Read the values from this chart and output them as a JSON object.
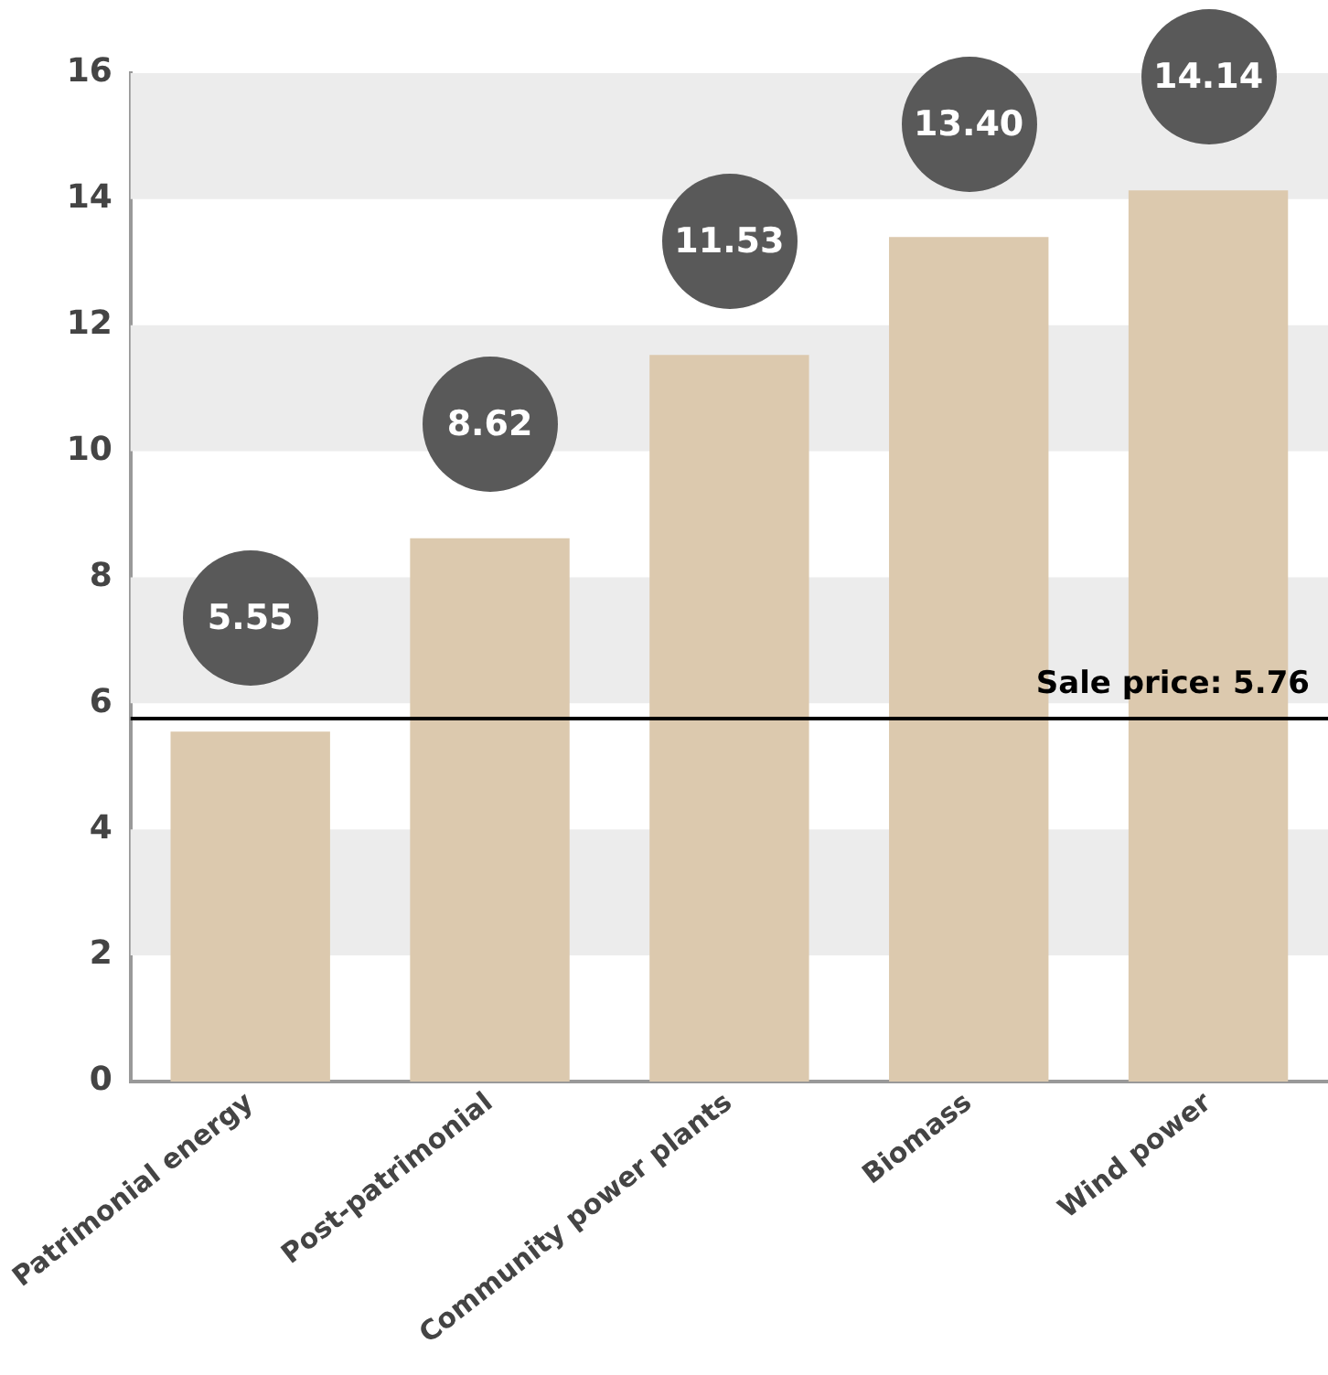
{
  "chart_data": {
    "type": "bar",
    "categories": [
      "Patrimonial energy",
      "Post-patrimonial",
      "Community power plants",
      "Biomass",
      "Wind power"
    ],
    "values": [
      5.55,
      8.62,
      11.53,
      13.4,
      14.14
    ],
    "color": "#dcc9ae",
    "value_labels": [
      "5.55",
      "8.62",
      "11.53",
      "13.40",
      "14.14"
    ],
    "ylim": [
      0,
      16
    ],
    "yticks": [
      0,
      2,
      4,
      6,
      8,
      10,
      12,
      14,
      16
    ],
    "grid": false,
    "legend": false,
    "ref_lines": [
      {
        "axis": "y",
        "value": 5.76,
        "label": "Sale price: 5.76",
        "color": "#000000"
      }
    ],
    "bands": [
      {
        "axis": "y",
        "from": 2,
        "to": 4,
        "color": "#ececec"
      },
      {
        "axis": "y",
        "from": 6,
        "to": 8,
        "color": "#ececec"
      },
      {
        "axis": "y",
        "from": 10,
        "to": 12,
        "color": "#ececec"
      },
      {
        "axis": "y",
        "from": 14,
        "to": 16,
        "color": "#ececec"
      }
    ]
  }
}
